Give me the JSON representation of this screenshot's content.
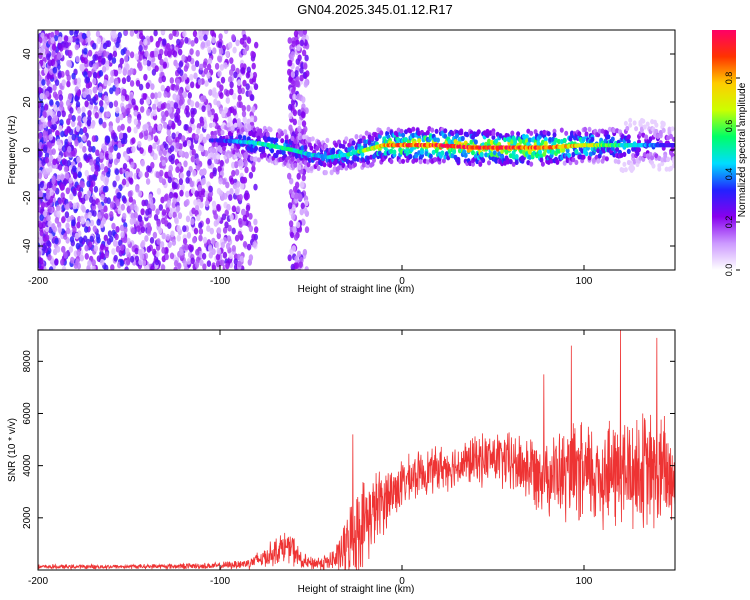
{
  "title": "GN04.2025.345.01.12.R17",
  "chart_data": [
    {
      "type": "heatmap",
      "name": "spectrogram",
      "xlabel": "Height of straight line (km)",
      "ylabel": "Frequency (Hz)",
      "xlim": [
        -200,
        150
      ],
      "ylim": [
        -50,
        50
      ],
      "xticks": [
        -200,
        -100,
        0,
        100
      ],
      "xticklabels": [
        "-200",
        "-100",
        "0",
        "100"
      ],
      "yticks": [
        -40,
        -20,
        0,
        20,
        40
      ],
      "yticklabels": [
        "-40",
        "-20",
        "0",
        "20",
        "40"
      ],
      "colorbar": {
        "label": "Normalized spectral amplitude",
        "range": [
          0.0,
          1.0
        ],
        "ticks": [
          0.0,
          0.2,
          0.4,
          0.6,
          0.8
        ],
        "ticklabels": [
          "0.0",
          "0.2",
          "0.4",
          "0.6",
          "0.8"
        ],
        "stops": [
          "#ffffff",
          "#cc99ff",
          "#8800ee",
          "#2222ff",
          "#00ddff",
          "#00ff66",
          "#ccff00",
          "#ffcc00",
          "#ff3300",
          "#ff0066"
        ]
      },
      "noise_region_km": [
        -200,
        -80
      ],
      "noise_band_km": [
        -62,
        -52
      ],
      "signal_track": {
        "x_km": [
          -100,
          -80,
          -60,
          -50,
          -40,
          -30,
          -20,
          -10,
          0,
          20,
          40,
          60,
          80,
          100,
          120,
          140,
          150
        ],
        "freq_hz": [
          4,
          3,
          0,
          -2,
          -3,
          -2,
          0,
          2,
          2,
          2,
          1,
          1,
          1,
          2,
          2,
          2,
          2
        ],
        "amplitude": [
          0.3,
          0.5,
          0.5,
          0.45,
          0.45,
          0.5,
          0.6,
          0.75,
          0.85,
          0.9,
          0.9,
          0.9,
          0.85,
          0.7,
          0.5,
          0.35,
          0.3
        ]
      }
    },
    {
      "type": "line",
      "name": "snr",
      "xlabel": "Height of straight line (km)",
      "ylabel": "SNR (10 * v/v)",
      "xlim": [
        -200,
        150
      ],
      "ylim": [
        0,
        9200
      ],
      "xticks": [
        -200,
        -100,
        0,
        100
      ],
      "xticklabels": [
        "-200",
        "-100",
        "0",
        "100"
      ],
      "yticks": [
        2000,
        4000,
        6000,
        8000
      ],
      "yticklabels": [
        "2000",
        "4000",
        "6000",
        "8000"
      ],
      "color": "#ee3333",
      "envelope": {
        "x": [
          -200,
          -150,
          -100,
          -85,
          -75,
          -65,
          -60,
          -55,
          -50,
          -40,
          -35,
          -30,
          -25,
          -20,
          -15,
          -10,
          -5,
          0,
          10,
          20,
          30,
          40,
          50,
          60,
          70,
          80,
          90,
          100,
          110,
          120,
          130,
          140,
          150
        ],
        "mean": [
          120,
          130,
          160,
          250,
          500,
          900,
          800,
          300,
          250,
          300,
          500,
          900,
          1500,
          1900,
          2300,
          2700,
          3000,
          3300,
          3700,
          3900,
          4000,
          4200,
          4300,
          4100,
          3900,
          3700,
          3600,
          3600,
          3700,
          3700,
          3800,
          3700,
          3600
        ],
        "spread": [
          100,
          100,
          150,
          250,
          500,
          700,
          700,
          400,
          300,
          400,
          800,
          1600,
          2000,
          1900,
          1700,
          1500,
          1300,
          1100,
          1000,
          1000,
          1000,
          1100,
          1200,
          1400,
          1600,
          1800,
          2100,
          2400,
          2500,
          2600,
          2700,
          2700,
          2700
        ]
      },
      "peaks": [
        {
          "x": -27,
          "y": 5200
        },
        {
          "x": 78,
          "y": 7500
        },
        {
          "x": 93,
          "y": 8600
        },
        {
          "x": 120,
          "y": 9200
        },
        {
          "x": 140,
          "y": 8900
        }
      ]
    }
  ]
}
